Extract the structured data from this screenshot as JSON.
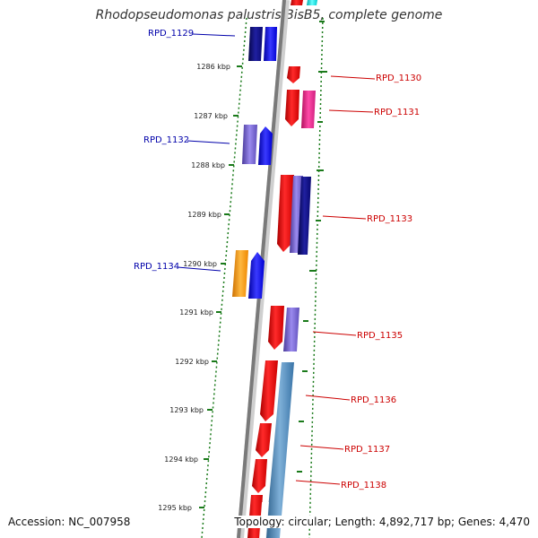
{
  "map": {
    "title": "Rhodopseudomonas palustris BisB5, complete genome",
    "accession": "Accession: NC_007958",
    "topology": "Topology: circular; Length: 4,892,717 bp; Genes: 4,470"
  },
  "colors": {
    "backbone": "#7a7a7a",
    "tick_major": "#1a7a1a",
    "tick_minor": "#1a7a1a",
    "label_forward": "#cc0000",
    "label_reverse": "#0000aa",
    "gene_red": "#ee0000",
    "gene_pink": "#e8208a",
    "gene_navy": "#0a0a80",
    "gene_blue": "#0000ee",
    "gene_violet": "#7060cc",
    "gene_orange": "#ff9900",
    "gene_steel": "#4682b4",
    "gene_cyan": "#00dddd"
  },
  "ruler_labels": [
    "1286 kbp",
    "1287 kbp",
    "1288 kbp",
    "1289 kbp",
    "1290 kbp",
    "1291 kbp",
    "1292 kbp",
    "1293 kbp",
    "1294 kbp",
    "1295 kbp"
  ],
  "gene_labels": [
    {
      "text": "RPD_1129",
      "strand": "reverse"
    },
    {
      "text": "RPD_1130",
      "strand": "forward"
    },
    {
      "text": "RPD_1131",
      "strand": "forward"
    },
    {
      "text": "RPD_1132",
      "strand": "reverse"
    },
    {
      "text": "RPD_1133",
      "strand": "forward"
    },
    {
      "text": "RPD_1134",
      "strand": "reverse"
    },
    {
      "text": "RPD_1135",
      "strand": "forward"
    },
    {
      "text": "RPD_1136",
      "strand": "forward"
    },
    {
      "text": "RPD_1137",
      "strand": "forward"
    },
    {
      "text": "RPD_1138",
      "strand": "forward"
    }
  ]
}
